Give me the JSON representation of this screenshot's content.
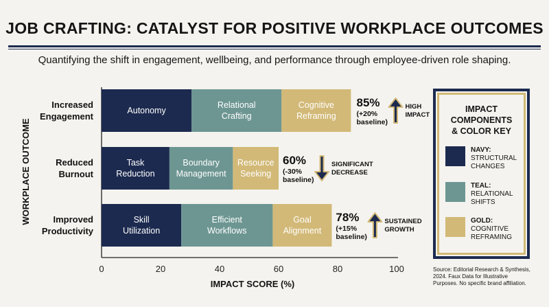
{
  "title": "JOB CRAFTING: CATALYST FOR POSITIVE WORKPLACE OUTCOMES",
  "subtitle": "Quantifying the shift in engagement, wellbeing, and performance through employee-driven role shaping.",
  "legend": {
    "title_line1": "IMPACT",
    "title_line2": "COMPONENTS",
    "title_line3": "& COLOR KEY",
    "items": [
      {
        "key": "NAVY:",
        "line1": "STRUCTURAL",
        "line2": "CHANGES",
        "color": "#1c2a4f"
      },
      {
        "key": "TEAL:",
        "line1": "RELATIONAL",
        "line2": "SHIFTS",
        "color": "#6d9692"
      },
      {
        "key": "GOLD:",
        "line1": "COGNITIVE",
        "line2": "REFRAMING",
        "color": "#d2b977"
      }
    ]
  },
  "source": {
    "line1": "Source: Editorial Research & Synthesis,",
    "line2": "2024. Faux Data for Illustrative",
    "line3": "Purposes. No specific brand affiliation."
  },
  "chart_data": {
    "type": "bar",
    "orientation": "horizontal",
    "stacked": true,
    "xlabel": "IMPACT SCORE (%)",
    "ylabel": "WORKPLACE OUTCOME",
    "xlim": [
      0,
      100
    ],
    "xticks": [
      0,
      20,
      40,
      60,
      80,
      100
    ],
    "grid": false,
    "categories": [
      {
        "line1": "Increased",
        "line2": "Engagement"
      },
      {
        "line1": "Reduced",
        "line2": "Burnout"
      },
      {
        "line1": "Improved",
        "line2": "Productivity"
      }
    ],
    "segments": [
      [
        {
          "line1": "Autonomy",
          "line2": "",
          "value": 30.5,
          "color": "#1c2a4f",
          "text_color": "#ffffff"
        },
        {
          "line1": "Relational",
          "line2": "Crafting",
          "value": 30.5,
          "color": "#6d9692",
          "text_color": "#ffffff"
        },
        {
          "line1": "Cognitive",
          "line2": "Reframing",
          "value": 23.5,
          "color": "#d2b977",
          "text_color": "#ffffff"
        }
      ],
      [
        {
          "line1": "Task",
          "line2": "Reduction",
          "value": 23,
          "color": "#1c2a4f",
          "text_color": "#ffffff"
        },
        {
          "line1": "Boundary",
          "line2": "Management",
          "value": 21.5,
          "color": "#6d9692",
          "text_color": "#ffffff"
        },
        {
          "line1": "Resource",
          "line2": "Seeking",
          "value": 15.5,
          "color": "#d2b977",
          "text_color": "#ffffff"
        }
      ],
      [
        {
          "line1": "Skill",
          "line2": "Utilization",
          "value": 27,
          "color": "#1c2a4f",
          "text_color": "#ffffff"
        },
        {
          "line1": "Efficient",
          "line2": "Workflows",
          "value": 31,
          "color": "#6d9692",
          "text_color": "#ffffff"
        },
        {
          "line1": "Goal",
          "line2": "Alignment",
          "value": 20,
          "color": "#d2b977",
          "text_color": "#ffffff"
        }
      ]
    ],
    "annotations": [
      {
        "value": "85%",
        "change": "(+20%",
        "base": "baseline)",
        "direction": "up",
        "label1": "HIGH",
        "label2": "IMPACT"
      },
      {
        "value": "60%",
        "change": "(-30%",
        "base": "baseline)",
        "direction": "down",
        "label1": "SIGNIFICANT",
        "label2": "DECREASE"
      },
      {
        "value": "78%",
        "change": "(+15%",
        "base": "baseline)",
        "direction": "up",
        "label1": "SUSTAINED",
        "label2": "GROWTH"
      }
    ],
    "totals": [
      85,
      60,
      78
    ]
  }
}
